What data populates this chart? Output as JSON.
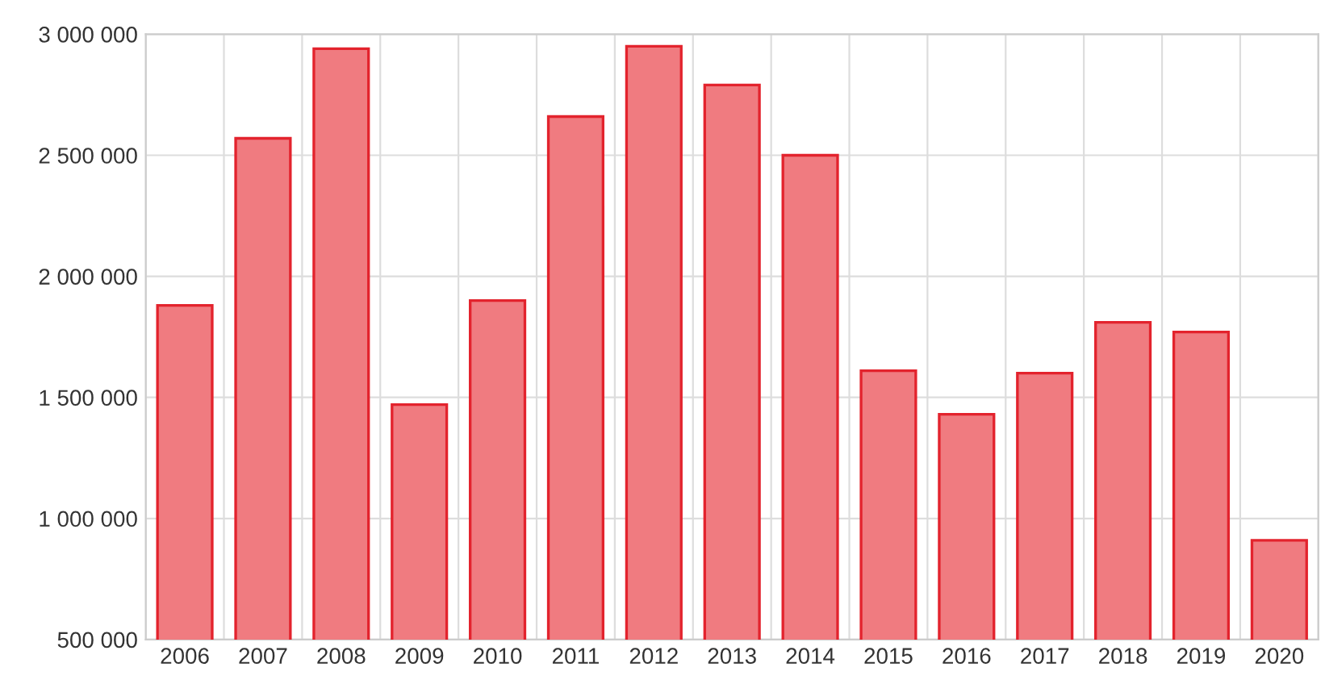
{
  "chart_data": {
    "type": "bar",
    "categories": [
      "2006",
      "2007",
      "2008",
      "2009",
      "2010",
      "2011",
      "2012",
      "2013",
      "2014",
      "2015",
      "2016",
      "2017",
      "2018",
      "2019",
      "2020"
    ],
    "values": [
      1880000,
      2570000,
      2940000,
      1470000,
      1900000,
      2660000,
      2950000,
      2790000,
      2500000,
      1610000,
      1430000,
      1600000,
      1810000,
      1770000,
      910000
    ],
    "color": "#f07b80",
    "ylim": [
      500000,
      3000000
    ],
    "yticks": [
      {
        "value": 500000,
        "label": "500 000"
      },
      {
        "value": 1000000,
        "label": "1 000 000"
      },
      {
        "value": 1500000,
        "label": "1 500 000"
      },
      {
        "value": 2000000,
        "label": "2 000 000"
      },
      {
        "value": 2500000,
        "label": "2 500 000"
      },
      {
        "value": 3000000,
        "label": "3 000 000"
      }
    ],
    "grid": true
  }
}
